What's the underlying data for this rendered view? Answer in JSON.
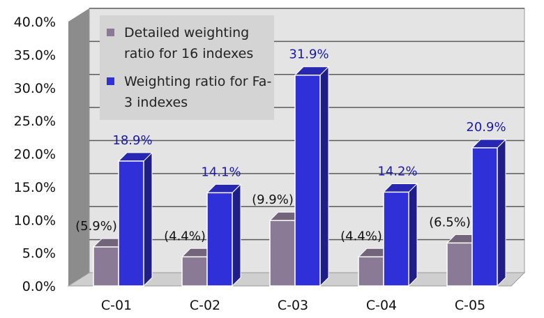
{
  "chart_data": {
    "type": "bar",
    "categories": [
      "C-01",
      "C-02",
      "C-03",
      "C-04",
      "C-05"
    ],
    "series": [
      {
        "name": "Detailed weighting ratio for 16 indexes",
        "values": [
          5.9,
          4.4,
          9.9,
          4.4,
          6.5
        ],
        "labels": [
          "(5.9%)",
          "(4.4%)",
          "(9.9%)",
          "(4.4%)",
          "(6.5%)"
        ],
        "color": "#8b7a96",
        "label_color": "#111111"
      },
      {
        "name": "Weighting ratio for Fa-3 indexes",
        "values": [
          18.9,
          14.1,
          31.9,
          14.2,
          20.9
        ],
        "labels": [
          "18.9%",
          "14.1%",
          "31.9%",
          "14.2%",
          "20.9%"
        ],
        "color": "#3030d8",
        "label_color": "#1a1aa8"
      }
    ],
    "yticks": [
      "0.0%",
      "5.0%",
      "10.0%",
      "15.0%",
      "20.0%",
      "25.0%",
      "30.0%",
      "35.0%",
      "40.0%"
    ],
    "ylim": [
      0,
      40
    ],
    "grid": true,
    "legend_position": "top-left",
    "style": "3d-column",
    "colors": {
      "wall": "#e4e4e4",
      "side_wall": "#8c8c8c",
      "floor": "#cfcfcf",
      "legend_bg": "#d4d4d4"
    }
  }
}
